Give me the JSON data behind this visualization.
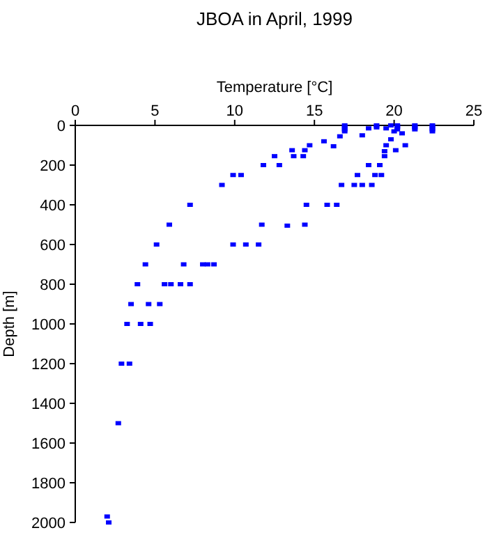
{
  "chart_data": {
    "type": "scatter",
    "title": "JBOA in April, 1999",
    "xlabel": "Temperature [°C]",
    "ylabel": "Depth [m]",
    "xlim": [
      0,
      25
    ],
    "ylim": [
      2000,
      0
    ],
    "xticks": [
      0,
      5,
      10,
      15,
      20,
      25
    ],
    "yticks": [
      0,
      200,
      400,
      600,
      800,
      1000,
      1200,
      1400,
      1600,
      1800,
      2000
    ],
    "marker": "square",
    "grid": false,
    "series": [
      {
        "color": "#0000ff",
        "x": [
          16.9,
          16.9,
          16.9,
          16.9,
          18.9,
          18.9,
          19.8,
          20.2,
          20.2,
          20.2,
          20.2,
          21.3,
          21.3,
          21.3,
          22.4,
          22.4,
          22.4,
          22.4,
          18.4,
          18.0,
          19.5,
          20.0,
          16.6,
          15.6,
          16.2,
          14.7,
          13.6,
          14.4,
          13.7,
          14.3,
          12.5,
          11.8,
          12.8,
          9.9,
          10.4,
          9.2,
          7.2,
          5.9,
          5.1,
          20.5,
          19.8,
          20.7,
          19.5,
          19.4,
          20.1,
          19.4,
          18.4,
          19.1,
          17.7,
          18.8,
          19.2,
          16.7,
          17.5,
          18.0,
          18.6,
          14.5,
          15.8,
          16.4,
          11.7,
          13.3,
          14.4,
          9.9,
          10.7,
          11.5,
          4.4,
          6.8,
          8.0,
          8.3,
          8.7,
          3.9,
          5.6,
          6.0,
          6.6,
          7.2,
          3.5,
          4.6,
          5.3,
          3.25,
          4.1,
          4.7,
          2.9,
          3.4,
          2.7,
          2.1,
          2.0
        ],
        "values": [
          0,
          10,
          20,
          30,
          0,
          10,
          0,
          0,
          5,
          10,
          20,
          0,
          10,
          20,
          0,
          10,
          20,
          30,
          15,
          50,
          15,
          30,
          55,
          80,
          105,
          100,
          125,
          125,
          155,
          155,
          155,
          200,
          200,
          250,
          250,
          300,
          400,
          500,
          600,
          40,
          70,
          100,
          100,
          130,
          125,
          155,
          200,
          200,
          250,
          250,
          250,
          300,
          300,
          300,
          300,
          400,
          400,
          400,
          500,
          505,
          500,
          600,
          600,
          600,
          700,
          700,
          700,
          700,
          700,
          800,
          800,
          800,
          800,
          800,
          900,
          900,
          900,
          1000,
          1000,
          1000,
          1200,
          1200,
          1500,
          2000,
          1970
        ]
      }
    ]
  }
}
